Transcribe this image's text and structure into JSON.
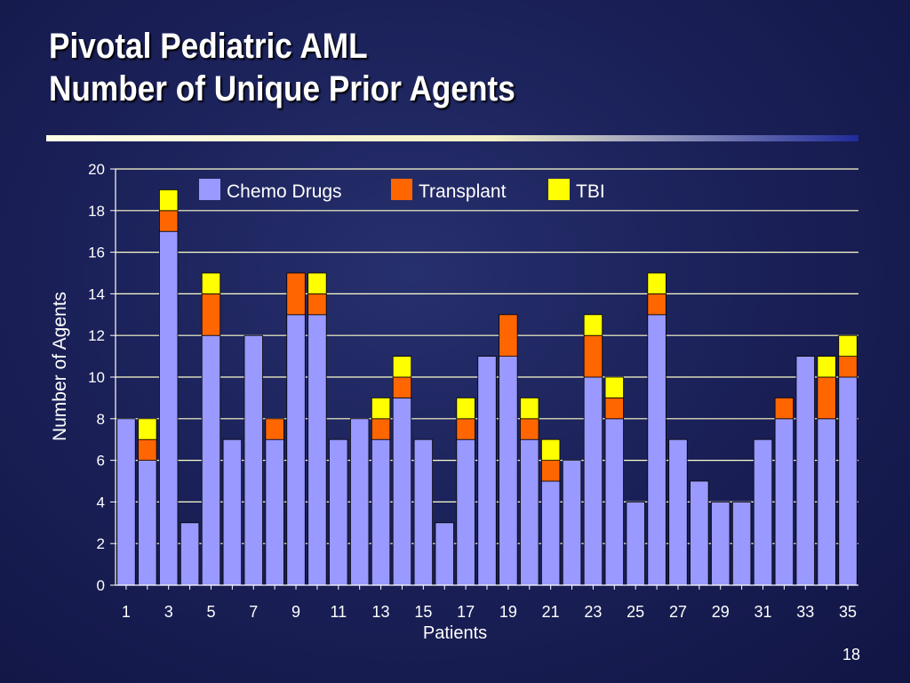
{
  "slide": {
    "title_line1": "Pivotal Pediatric AML",
    "title_line2": "Number of Unique Prior Agents",
    "page_number": "18"
  },
  "colors": {
    "chemo": "#9999ff",
    "transplant": "#ff6600",
    "tbi": "#ffff00",
    "gridline": "#ffffcc",
    "axis_text": "#ffffff"
  },
  "chart_data": {
    "type": "bar",
    "stacked": true,
    "title": "",
    "xlabel": "Patients",
    "ylabel": "Number of Agents",
    "ylim": [
      0,
      20
    ],
    "yticks": [
      0,
      2,
      4,
      6,
      8,
      10,
      12,
      14,
      16,
      18,
      20
    ],
    "grid": true,
    "legend_position": "top",
    "categories": [
      "1",
      "2",
      "3",
      "4",
      "5",
      "6",
      "7",
      "8",
      "9",
      "10",
      "11",
      "12",
      "13",
      "14",
      "15",
      "16",
      "17",
      "18",
      "19",
      "20",
      "21",
      "22",
      "23",
      "24",
      "25",
      "26",
      "27",
      "28",
      "29",
      "30",
      "31",
      "32",
      "33",
      "34",
      "35"
    ],
    "xtick_labels": [
      "1",
      "3",
      "5",
      "7",
      "9",
      "11",
      "13",
      "15",
      "17",
      "19",
      "21",
      "23",
      "25",
      "27",
      "29",
      "31",
      "33",
      "35"
    ],
    "series": [
      {
        "name": "Chemo Drugs",
        "color": "#9999ff",
        "values": [
          8,
          6,
          17,
          3,
          12,
          7,
          12,
          7,
          13,
          13,
          7,
          8,
          7,
          9,
          7,
          3,
          7,
          11,
          11,
          7,
          5,
          6,
          10,
          8,
          4,
          13,
          7,
          5,
          4,
          4,
          7,
          8,
          11,
          8,
          10
        ]
      },
      {
        "name": "Transplant",
        "color": "#ff6600",
        "values": [
          0,
          1,
          1,
          0,
          2,
          0,
          0,
          1,
          2,
          1,
          0,
          0,
          1,
          1,
          0,
          0,
          1,
          0,
          2,
          1,
          1,
          0,
          2,
          1,
          0,
          1,
          0,
          0,
          0,
          0,
          0,
          1,
          0,
          2,
          1
        ]
      },
      {
        "name": "TBI",
        "color": "#ffff00",
        "values": [
          0,
          1,
          1,
          0,
          1,
          0,
          0,
          0,
          0,
          1,
          0,
          0,
          1,
          1,
          0,
          0,
          1,
          0,
          0,
          1,
          1,
          0,
          1,
          1,
          0,
          1,
          0,
          0,
          0,
          0,
          0,
          0,
          0,
          1,
          1
        ]
      }
    ]
  }
}
